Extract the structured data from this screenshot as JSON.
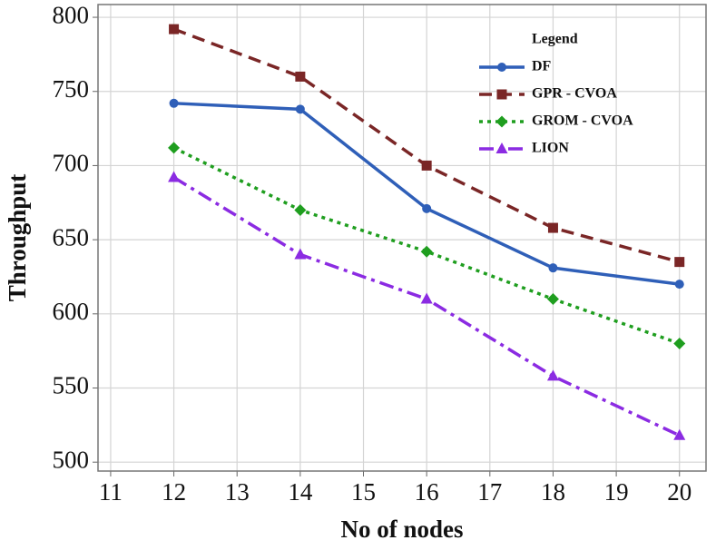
{
  "chart_data": {
    "type": "line",
    "x_label": "No of nodes",
    "y_label": "Throughput",
    "x": [
      12,
      14,
      16,
      18,
      20
    ],
    "xlim": [
      10.8,
      20.42
    ],
    "xticks": [
      11,
      12,
      13,
      14,
      15,
      16,
      17,
      18,
      19,
      20
    ],
    "ylim": [
      494,
      808.6
    ],
    "yticks": [
      500,
      550,
      600,
      650,
      700,
      750,
      800
    ],
    "grid": true,
    "legend_title": "Legend",
    "legend_position": "upper right",
    "series": [
      {
        "name": "DF",
        "color": "#2f5fb8",
        "linestyle": "solid",
        "marker": "circle",
        "values": [
          742,
          738,
          671,
          631,
          620
        ]
      },
      {
        "name": "GPR - CVOA",
        "color": "#7a2626",
        "linestyle": "dashed",
        "marker": "square",
        "values": [
          792,
          760,
          700,
          658,
          635
        ]
      },
      {
        "name": "GROM - CVOA",
        "color": "#1f9e1f",
        "linestyle": "dotted",
        "marker": "diamond",
        "values": [
          712,
          670,
          642,
          610,
          580
        ]
      },
      {
        "name": "LION",
        "color": "#8b2be2",
        "linestyle": "dashdot",
        "marker": "triangle",
        "values": [
          692,
          640,
          610,
          558,
          518
        ]
      }
    ]
  }
}
